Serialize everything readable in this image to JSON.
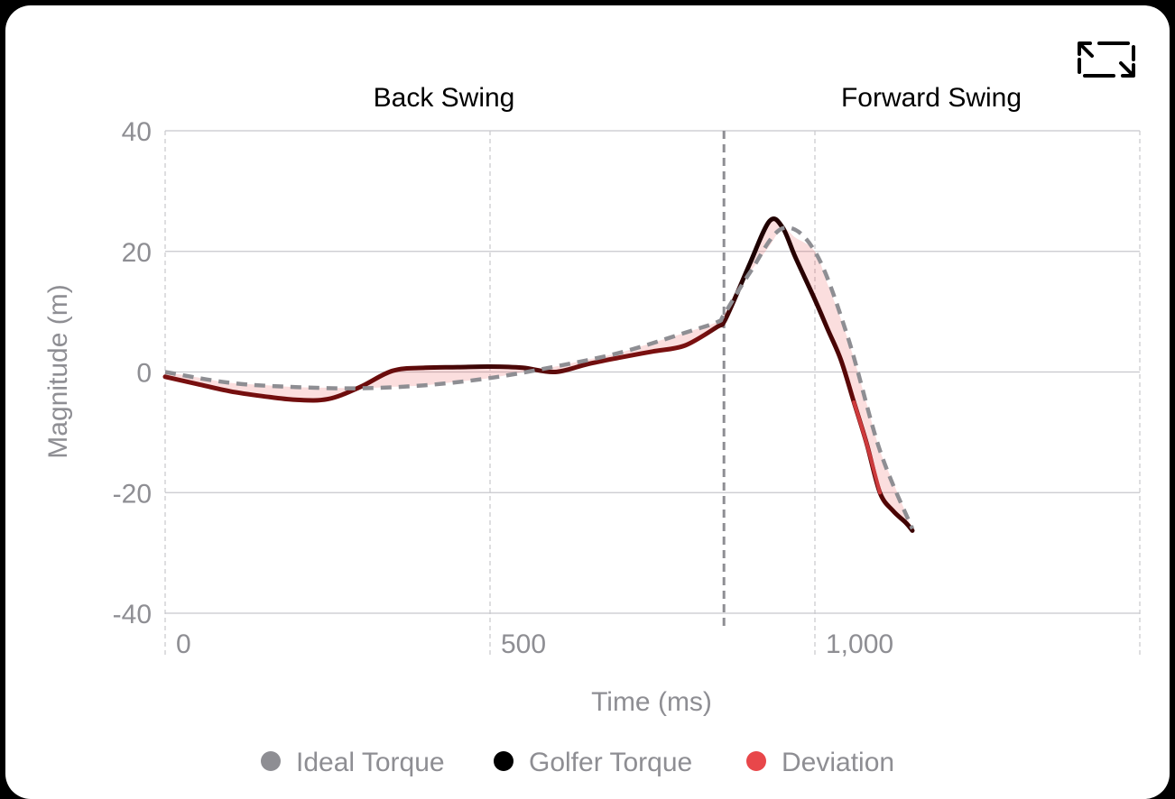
{
  "chart_data": {
    "type": "line",
    "title": "",
    "xlabel": "Time (ms)",
    "ylabel": "Magnitude (m)",
    "xlim": [
      0,
      1500
    ],
    "ylim": [
      -40,
      40
    ],
    "x_ticks": [
      0,
      500,
      1000
    ],
    "x_tick_labels": [
      "0",
      "500",
      "1,000"
    ],
    "y_ticks": [
      40,
      20,
      0,
      -20,
      -40
    ],
    "y_tick_labels": [
      "40",
      "20",
      "0",
      "-20",
      "-40"
    ],
    "grid": true,
    "legend_position": "bottom",
    "phases": [
      {
        "label": "Back Swing",
        "start": 0,
        "end": 860
      },
      {
        "label": "Forward Swing",
        "start": 860,
        "end": 1500
      }
    ],
    "phase_divider_x": 860,
    "series": [
      {
        "name": "Ideal Torque",
        "color": "#8e8e93",
        "style": "dashed",
        "x": [
          0,
          100,
          200,
          300,
          400,
          500,
          600,
          700,
          800,
          850,
          860,
          900,
          950,
          1000,
          1050,
          1100,
          1150
        ],
        "y": [
          0,
          -1.8,
          -2.5,
          -2.7,
          -2.2,
          -1.0,
          0.9,
          3.2,
          6.5,
          8.3,
          9.5,
          16.5,
          23.8,
          20.0,
          6.0,
          -13.0,
          -26.0
        ]
      },
      {
        "name": "Golfer Torque",
        "color": "#000000",
        "style": "solid",
        "x": [
          0,
          50,
          100,
          150,
          200,
          250,
          300,
          350,
          400,
          450,
          500,
          550,
          600,
          650,
          700,
          750,
          800,
          850,
          860,
          880,
          900,
          930,
          950,
          970,
          1000,
          1020,
          1040,
          1060,
          1080,
          1100,
          1120,
          1140,
          1150
        ],
        "y": [
          -0.8,
          -2.0,
          -3.2,
          -4.0,
          -4.6,
          -4.5,
          -2.5,
          0.2,
          0.7,
          0.8,
          0.9,
          0.7,
          0.0,
          1.3,
          2.4,
          3.4,
          4.4,
          7.5,
          8.3,
          13.0,
          18.0,
          25.0,
          24.0,
          19.0,
          12.0,
          7.0,
          2.0,
          -5.0,
          -12.0,
          -20.0,
          -23.0,
          -25.0,
          -26.3
        ]
      },
      {
        "name": "Deviation",
        "color": "#e8474a",
        "style": "area"
      }
    ]
  },
  "ui": {
    "expand_icon": "expand-icon"
  }
}
